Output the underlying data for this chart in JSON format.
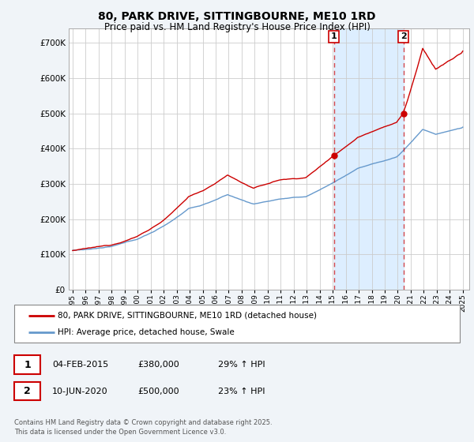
{
  "title": "80, PARK DRIVE, SITTINGBOURNE, ME10 1RD",
  "subtitle": "Price paid vs. HM Land Registry's House Price Index (HPI)",
  "ylabel_ticks": [
    "£0",
    "£100K",
    "£200K",
    "£300K",
    "£400K",
    "£500K",
    "£600K",
    "£700K"
  ],
  "ytick_vals": [
    0,
    100000,
    200000,
    300000,
    400000,
    500000,
    600000,
    700000
  ],
  "ylim": [
    0,
    740000
  ],
  "sale1": {
    "date": "04-FEB-2015",
    "price": 380000,
    "hpi_change": "29% ↑ HPI",
    "label": "1"
  },
  "sale2": {
    "date": "10-JUN-2020",
    "price": 500000,
    "hpi_change": "23% ↑ HPI",
    "label": "2"
  },
  "sale1_x": 2015.09,
  "sale2_x": 2020.44,
  "legend_line1": "80, PARK DRIVE, SITTINGBOURNE, ME10 1RD (detached house)",
  "legend_line2": "HPI: Average price, detached house, Swale",
  "footnote": "Contains HM Land Registry data © Crown copyright and database right 2025.\nThis data is licensed under the Open Government Licence v3.0.",
  "line1_color": "#cc0000",
  "line2_color": "#6699cc",
  "shade_color": "#ddeeff",
  "dashed_color": "#cc0000",
  "background_color": "#f0f4f8",
  "plot_bg": "#ffffff",
  "grid_color": "#cccccc"
}
